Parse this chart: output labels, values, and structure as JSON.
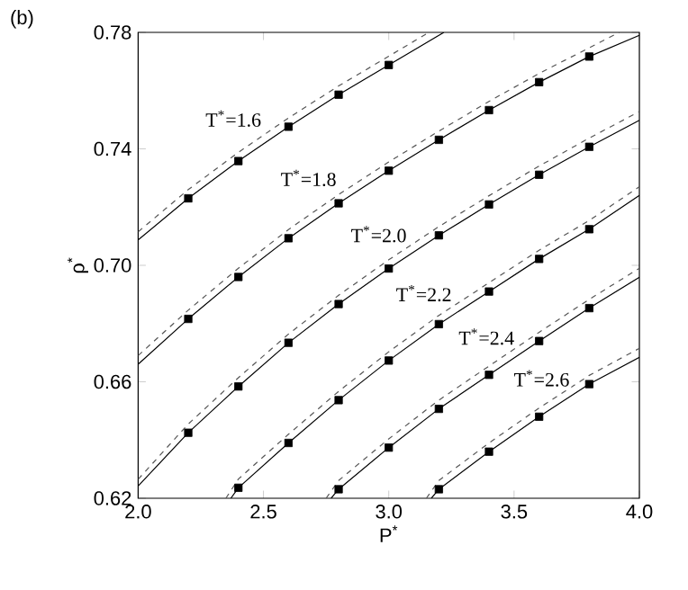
{
  "chart_data": {
    "type": "line",
    "xlabel": "P$^{*}$",
    "ylabel": "ρ$^{*}$",
    "xlim": [
      2.0,
      4.0
    ],
    "ylim": [
      0.62,
      0.78
    ],
    "xticks": [
      {
        "value": 2.0,
        "label": "2.0"
      },
      {
        "value": 2.5,
        "label": "2.5"
      },
      {
        "value": 3.0,
        "label": "3.0"
      },
      {
        "value": 3.5,
        "label": "3.5"
      },
      {
        "value": 4.0,
        "label": "4.0"
      }
    ],
    "yticks": [
      0.62,
      0.66,
      {
        "value": 0.7,
        "label": "0.70"
      },
      0.74,
      0.78
    ],
    "grid": false,
    "annotations": [
      "(b)",
      {
        "text": "T$^{*}$=1.6",
        "x": 2.38,
        "y": 0.7504
      },
      {
        "text": "T$^{*}$=1.8",
        "x": 2.68,
        "y": 0.73
      },
      {
        "text": "T$^{*}$=2.0",
        "x": 2.96,
        "y": 0.7107
      },
      {
        "text": "T$^{*}$=2.2",
        "x": 3.14,
        "y": 0.6904
      },
      {
        "text": "T$^{*}$=2.4",
        "x": 3.39,
        "y": 0.6755
      },
      {
        "text": "T$^{*}$=2.6",
        "x": 3.61,
        "y": 0.6612
      }
    ],
    "series": [
      {
        "line_style": "dashed",
        "color": "#555555",
        "x": [
          2.0,
          2.2,
          2.4,
          2.6,
          2.8,
          3.0,
          3.16
        ],
        "values": [
          0.7115,
          0.726,
          0.7388,
          0.7506,
          0.7616,
          0.7718,
          0.78
        ]
      },
      {
        "line_style": "solid",
        "color": "#000000",
        "x": [
          2.0,
          2.2,
          2.4,
          2.6,
          2.8,
          3.0,
          3.22
        ],
        "values": [
          0.7087,
          0.723,
          0.7358,
          0.7476,
          0.7586,
          0.7688,
          0.78
        ]
      },
      {
        "type": "scatter",
        "marker": "square",
        "color": "#000000",
        "x": [
          2.2,
          2.4,
          2.6,
          2.8,
          3.0
        ],
        "values": [
          0.723,
          0.7358,
          0.7476,
          0.7586,
          0.7688
        ]
      },
      {
        "line_style": "dashed",
        "color": "#555555",
        "x": [
          2.0,
          2.2,
          2.4,
          2.6,
          2.8,
          3.0,
          3.2,
          3.4,
          3.6,
          3.8,
          3.92
        ],
        "values": [
          0.669,
          0.6846,
          0.699,
          0.7123,
          0.7243,
          0.7355,
          0.7461,
          0.7563,
          0.7659,
          0.7747,
          0.78
        ]
      },
      {
        "line_style": "solid",
        "color": "#000000",
        "x": [
          2.0,
          2.2,
          2.4,
          2.6,
          2.8,
          3.0,
          3.2,
          3.4,
          3.6,
          3.8,
          4.0
        ],
        "values": [
          0.666,
          0.6816,
          0.696,
          0.7093,
          0.7213,
          0.7325,
          0.7431,
          0.7533,
          0.7629,
          0.7717,
          0.779
        ]
      },
      {
        "type": "scatter",
        "marker": "square",
        "color": "#000000",
        "x": [
          2.2,
          2.4,
          2.6,
          2.8,
          3.0,
          3.2,
          3.4,
          3.6,
          3.8
        ],
        "values": [
          0.6816,
          0.696,
          0.7093,
          0.7213,
          0.7325,
          0.7431,
          0.7533,
          0.7629,
          0.7717
        ]
      },
      {
        "line_style": "dashed",
        "color": "#555555",
        "x": [
          2.0,
          2.2,
          2.4,
          2.6,
          2.8,
          3.0,
          3.2,
          3.4,
          3.6,
          3.8,
          4.0
        ],
        "values": [
          0.6265,
          0.6455,
          0.6614,
          0.6764,
          0.6897,
          0.7019,
          0.7133,
          0.7239,
          0.7341,
          0.7437,
          0.7528
        ]
      },
      {
        "line_style": "solid",
        "color": "#000000",
        "x": [
          2.0,
          2.2,
          2.4,
          2.6,
          2.8,
          3.0,
          3.2,
          3.4,
          3.6,
          3.8,
          4.0
        ],
        "values": [
          0.6242,
          0.6425,
          0.6584,
          0.6734,
          0.6867,
          0.6989,
          0.7103,
          0.7209,
          0.7311,
          0.7407,
          0.7498
        ]
      },
      {
        "type": "scatter",
        "marker": "square",
        "color": "#000000",
        "x": [
          2.2,
          2.4,
          2.6,
          2.8,
          3.0,
          3.2,
          3.4,
          3.6,
          3.8
        ],
        "values": [
          0.6425,
          0.6584,
          0.6734,
          0.6867,
          0.6989,
          0.7103,
          0.7209,
          0.7311,
          0.7407
        ]
      },
      {
        "line_style": "dashed",
        "color": "#555555",
        "x": [
          2.35,
          2.4,
          2.6,
          2.8,
          3.0,
          3.2,
          3.4,
          3.6,
          3.8,
          4.0
        ],
        "values": [
          0.62,
          0.6266,
          0.642,
          0.6567,
          0.6703,
          0.6828,
          0.694,
          0.7052,
          0.7154,
          0.727
        ]
      },
      {
        "line_style": "solid",
        "color": "#000000",
        "x": [
          2.37,
          2.4,
          2.6,
          2.8,
          3.0,
          3.2,
          3.4,
          3.6,
          3.8,
          4.0
        ],
        "values": [
          0.62,
          0.6236,
          0.639,
          0.6537,
          0.6673,
          0.6798,
          0.691,
          0.7022,
          0.7124,
          0.724
        ]
      },
      {
        "type": "scatter",
        "marker": "square",
        "color": "#000000",
        "x": [
          2.4,
          2.6,
          2.8,
          3.0,
          3.2,
          3.4,
          3.6,
          3.8
        ],
        "values": [
          0.6236,
          0.639,
          0.6537,
          0.6673,
          0.6798,
          0.691,
          0.7022,
          0.7124
        ]
      },
      {
        "line_style": "dashed",
        "color": "#555555",
        "x": [
          2.75,
          2.8,
          3.0,
          3.2,
          3.4,
          3.6,
          3.8,
          4.0
        ],
        "values": [
          0.62,
          0.6261,
          0.6404,
          0.6537,
          0.6654,
          0.677,
          0.6883,
          0.699
        ]
      },
      {
        "line_style": "solid",
        "color": "#000000",
        "x": [
          2.77,
          2.8,
          3.0,
          3.2,
          3.4,
          3.6,
          3.8,
          4.0
        ],
        "values": [
          0.62,
          0.6231,
          0.6374,
          0.6507,
          0.6624,
          0.674,
          0.6853,
          0.6959
        ]
      },
      {
        "type": "scatter",
        "marker": "square",
        "color": "#000000",
        "x": [
          2.8,
          3.0,
          3.2,
          3.4,
          3.6,
          3.8
        ],
        "values": [
          0.6231,
          0.6374,
          0.6507,
          0.6624,
          0.674,
          0.6853
        ]
      },
      {
        "line_style": "dashed",
        "color": "#555555",
        "x": [
          3.15,
          3.2,
          3.4,
          3.6,
          3.8,
          4.0
        ],
        "values": [
          0.62,
          0.6261,
          0.639,
          0.651,
          0.6622,
          0.6715
        ]
      },
      {
        "line_style": "solid",
        "color": "#000000",
        "x": [
          3.17,
          3.2,
          3.4,
          3.6,
          3.8,
          4.0
        ],
        "values": [
          0.62,
          0.6231,
          0.636,
          0.648,
          0.6592,
          0.6684
        ]
      },
      {
        "type": "scatter",
        "marker": "square",
        "color": "#000000",
        "x": [
          3.2,
          3.4,
          3.6,
          3.8
        ],
        "values": [
          0.6231,
          0.636,
          0.648,
          0.6592
        ]
      }
    ]
  }
}
